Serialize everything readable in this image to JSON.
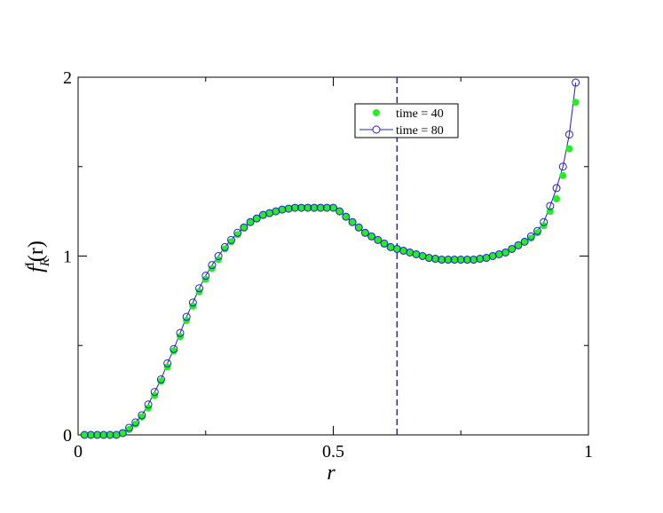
{
  "chart_data": {
    "type": "scatter",
    "xlabel": "r",
    "ylabel": {
      "base": "f",
      "sup": "I",
      "sub": "R",
      "arg": "(r)"
    },
    "xlim": [
      0,
      1
    ],
    "ylim": [
      0,
      2
    ],
    "x_ticks": [
      0,
      0.5,
      1
    ],
    "x_tick_labels": [
      "0",
      "0.5",
      "1"
    ],
    "y_ticks": [
      0,
      1,
      2
    ],
    "y_tick_labels": [
      "0",
      "1",
      "2"
    ],
    "grid": false,
    "legend_position": "top-center",
    "vertical_line": {
      "x": 0.625,
      "style": "dashed",
      "color": "#1f1fc8"
    },
    "series": [
      {
        "name": "time = 40",
        "marker": "filled-circle",
        "line": false,
        "color": "#22ee22",
        "x": [
          0.0125,
          0.025,
          0.0375,
          0.05,
          0.0625,
          0.075,
          0.0875,
          0.1,
          0.1125,
          0.125,
          0.1375,
          0.15,
          0.1625,
          0.175,
          0.1875,
          0.2,
          0.2125,
          0.225,
          0.2375,
          0.25,
          0.2625,
          0.275,
          0.2875,
          0.3,
          0.3125,
          0.325,
          0.3375,
          0.35,
          0.3625,
          0.375,
          0.3875,
          0.4,
          0.4125,
          0.425,
          0.4375,
          0.45,
          0.4625,
          0.475,
          0.4875,
          0.5,
          0.5125,
          0.525,
          0.5375,
          0.55,
          0.5625,
          0.575,
          0.5875,
          0.6,
          0.6125,
          0.625,
          0.6375,
          0.65,
          0.6625,
          0.675,
          0.6875,
          0.7,
          0.7125,
          0.725,
          0.7375,
          0.75,
          0.7625,
          0.775,
          0.7875,
          0.8,
          0.8125,
          0.825,
          0.8375,
          0.85,
          0.8625,
          0.875,
          0.8875,
          0.9,
          0.9125,
          0.925,
          0.9375,
          0.95,
          0.9625,
          0.975
        ],
        "y": [
          0,
          0,
          0,
          0,
          0,
          0,
          0.01,
          0.03,
          0.06,
          0.1,
          0.15,
          0.22,
          0.3,
          0.38,
          0.47,
          0.55,
          0.64,
          0.72,
          0.8,
          0.87,
          0.93,
          0.98,
          1.04,
          1.08,
          1.12,
          1.16,
          1.19,
          1.21,
          1.23,
          1.24,
          1.25,
          1.26,
          1.265,
          1.27,
          1.27,
          1.27,
          1.27,
          1.27,
          1.27,
          1.27,
          1.25,
          1.22,
          1.19,
          1.16,
          1.13,
          1.11,
          1.09,
          1.07,
          1.05,
          1.04,
          1.03,
          1.02,
          1.01,
          1.0,
          0.99,
          0.985,
          0.98,
          0.98,
          0.98,
          0.98,
          0.98,
          0.98,
          0.985,
          0.99,
          1.0,
          1.01,
          1.02,
          1.04,
          1.06,
          1.08,
          1.1,
          1.13,
          1.17,
          1.25,
          1.32,
          1.45,
          1.6,
          1.86
        ]
      },
      {
        "name": "time = 80",
        "marker": "open-circle",
        "line": true,
        "color": "#1f1fc8",
        "x": [
          0.0125,
          0.025,
          0.0375,
          0.05,
          0.0625,
          0.075,
          0.0875,
          0.1,
          0.1125,
          0.125,
          0.1375,
          0.15,
          0.1625,
          0.175,
          0.1875,
          0.2,
          0.2125,
          0.225,
          0.2375,
          0.25,
          0.2625,
          0.275,
          0.2875,
          0.3,
          0.3125,
          0.325,
          0.3375,
          0.35,
          0.3625,
          0.375,
          0.3875,
          0.4,
          0.4125,
          0.425,
          0.4375,
          0.45,
          0.4625,
          0.475,
          0.4875,
          0.5,
          0.5125,
          0.525,
          0.5375,
          0.55,
          0.5625,
          0.575,
          0.5875,
          0.6,
          0.6125,
          0.625,
          0.6375,
          0.65,
          0.6625,
          0.675,
          0.6875,
          0.7,
          0.7125,
          0.725,
          0.7375,
          0.75,
          0.7625,
          0.775,
          0.7875,
          0.8,
          0.8125,
          0.825,
          0.8375,
          0.85,
          0.8625,
          0.875,
          0.8875,
          0.9,
          0.9125,
          0.925,
          0.9375,
          0.95,
          0.9625,
          0.975
        ],
        "y": [
          0,
          0,
          0,
          0,
          0,
          0,
          0.01,
          0.04,
          0.07,
          0.11,
          0.17,
          0.24,
          0.31,
          0.4,
          0.48,
          0.57,
          0.66,
          0.74,
          0.82,
          0.89,
          0.95,
          1.0,
          1.05,
          1.09,
          1.13,
          1.16,
          1.19,
          1.21,
          1.23,
          1.24,
          1.25,
          1.26,
          1.265,
          1.27,
          1.27,
          1.27,
          1.27,
          1.27,
          1.27,
          1.27,
          1.25,
          1.22,
          1.19,
          1.16,
          1.13,
          1.11,
          1.09,
          1.07,
          1.05,
          1.04,
          1.03,
          1.02,
          1.01,
          1.0,
          0.99,
          0.985,
          0.98,
          0.98,
          0.98,
          0.98,
          0.98,
          0.98,
          0.985,
          0.99,
          1.0,
          1.01,
          1.02,
          1.04,
          1.06,
          1.08,
          1.11,
          1.14,
          1.19,
          1.28,
          1.38,
          1.5,
          1.68,
          1.97
        ]
      }
    ]
  }
}
